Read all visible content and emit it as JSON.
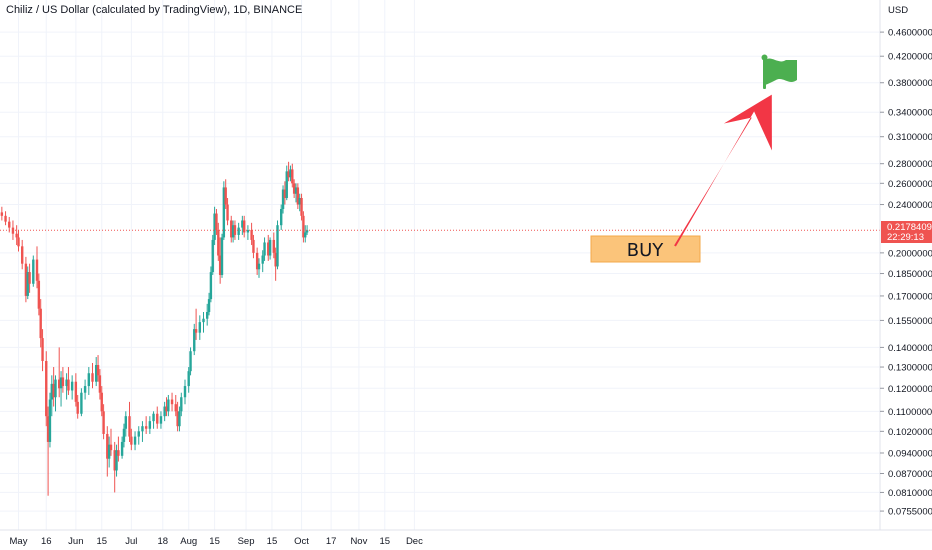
{
  "header": {
    "title": "Chiliz / US Dollar (calculated by TradingView), 1D, BINANCE"
  },
  "price_axis": {
    "currency": "USD",
    "labels": [
      "0.46000000",
      "0.42000000",
      "0.38000000",
      "0.34000000",
      "0.31000000",
      "0.28000000",
      "0.26000000",
      "0.24000000",
      "0.20000000",
      "0.18500000",
      "0.17000000",
      "0.15500000",
      "0.14000000",
      "0.13000000",
      "0.12000000",
      "0.11000000",
      "0.10200000",
      "0.09400000",
      "0.08700000",
      "0.08100000",
      "0.07550000"
    ],
    "current_price": "0.21784092",
    "countdown": "22:29:13"
  },
  "time_axis": {
    "labels": [
      "May",
      "16",
      "Jun",
      "15",
      "Jul",
      "18",
      "Aug",
      "15",
      "Sep",
      "15",
      "Oct",
      "17",
      "Nov",
      "15",
      "Dec"
    ]
  },
  "annotation": {
    "buy_label": "BUY"
  },
  "colors": {
    "up": "#26a69a",
    "down": "#ef5350",
    "buy_box": "#fbc47a",
    "arrow": "#f23645",
    "flag": "#4caf50",
    "grid": "#f0f3fa"
  },
  "chart_data": {
    "type": "candlestick",
    "title": "Chiliz / US Dollar (calculated by TradingView), 1D, BINANCE",
    "scale": "log",
    "ylim": [
      0.073,
      0.5
    ],
    "x_range": [
      "2021-04-21",
      "2021-12-25"
    ],
    "series": [
      {
        "values": [
          [
            "2021-04-22",
            0.233,
            0.238,
            0.226,
            0.23
          ],
          [
            "2021-04-24",
            0.23,
            0.234,
            0.222,
            0.225
          ],
          [
            "2021-04-26",
            0.225,
            0.229,
            0.216,
            0.22
          ],
          [
            "2021-04-28",
            0.22,
            0.226,
            0.21,
            0.215
          ],
          [
            "2021-04-30",
            0.215,
            0.222,
            0.206,
            0.212
          ],
          [
            "2021-05-01",
            0.212,
            0.218,
            0.201,
            0.205
          ],
          [
            "2021-05-03",
            0.205,
            0.21,
            0.188,
            0.192
          ],
          [
            "2021-05-05",
            0.192,
            0.197,
            0.166,
            0.17
          ],
          [
            "2021-05-06",
            0.17,
            0.19,
            0.168,
            0.186
          ],
          [
            "2021-05-07",
            0.186,
            0.192,
            0.172,
            0.178
          ],
          [
            "2021-05-09",
            0.178,
            0.198,
            0.176,
            0.195
          ],
          [
            "2021-05-11",
            0.195,
            0.205,
            0.175,
            0.18
          ],
          [
            "2021-05-12",
            0.18,
            0.185,
            0.158,
            0.162
          ],
          [
            "2021-05-13",
            0.162,
            0.168,
            0.14,
            0.145
          ],
          [
            "2021-05-14",
            0.145,
            0.15,
            0.128,
            0.133
          ],
          [
            "2021-05-16",
            0.133,
            0.138,
            0.104,
            0.108
          ],
          [
            "2021-05-17",
            0.108,
            0.112,
            0.08,
            0.098
          ],
          [
            "2021-05-18",
            0.098,
            0.118,
            0.096,
            0.115
          ],
          [
            "2021-05-19",
            0.115,
            0.126,
            0.108,
            0.122
          ],
          [
            "2021-05-20",
            0.122,
            0.13,
            0.112,
            0.116
          ],
          [
            "2021-05-21",
            0.116,
            0.126,
            0.11,
            0.124
          ],
          [
            "2021-05-23",
            0.124,
            0.14,
            0.116,
            0.12
          ],
          [
            "2021-05-24",
            0.12,
            0.128,
            0.112,
            0.125
          ],
          [
            "2021-05-25",
            0.125,
            0.13,
            0.118,
            0.121
          ],
          [
            "2021-05-27",
            0.121,
            0.127,
            0.115,
            0.124
          ],
          [
            "2021-05-28",
            0.124,
            0.13,
            0.117,
            0.119
          ],
          [
            "2021-05-30",
            0.119,
            0.126,
            0.115,
            0.123
          ],
          [
            "2021-06-01",
            0.123,
            0.127,
            0.112,
            0.114
          ],
          [
            "2021-06-02",
            0.114,
            0.117,
            0.107,
            0.109
          ],
          [
            "2021-06-04",
            0.109,
            0.12,
            0.108,
            0.118
          ],
          [
            "2021-06-06",
            0.118,
            0.124,
            0.115,
            0.121
          ],
          [
            "2021-06-08",
            0.121,
            0.13,
            0.117,
            0.127
          ],
          [
            "2021-06-10",
            0.127,
            0.132,
            0.12,
            0.123
          ],
          [
            "2021-06-12",
            0.123,
            0.135,
            0.121,
            0.131
          ],
          [
            "2021-06-13",
            0.131,
            0.136,
            0.123,
            0.126
          ],
          [
            "2021-06-14",
            0.126,
            0.129,
            0.115,
            0.118
          ],
          [
            "2021-06-15",
            0.118,
            0.121,
            0.108,
            0.11
          ],
          [
            "2021-06-16",
            0.11,
            0.113,
            0.099,
            0.101
          ],
          [
            "2021-06-18",
            0.101,
            0.104,
            0.086,
            0.092
          ],
          [
            "2021-06-19",
            0.092,
            0.1,
            0.089,
            0.097
          ],
          [
            "2021-06-20",
            0.097,
            0.103,
            0.093,
            0.095
          ],
          [
            "2021-06-22",
            0.095,
            0.098,
            0.081,
            0.088
          ],
          [
            "2021-06-23",
            0.088,
            0.097,
            0.086,
            0.095
          ],
          [
            "2021-06-24",
            0.095,
            0.1,
            0.091,
            0.093
          ],
          [
            "2021-06-26",
            0.093,
            0.1,
            0.092,
            0.098
          ],
          [
            "2021-06-27",
            0.098,
            0.105,
            0.096,
            0.103
          ],
          [
            "2021-06-28",
            0.103,
            0.11,
            0.1,
            0.108
          ],
          [
            "2021-06-30",
            0.108,
            0.114,
            0.098,
            0.1
          ],
          [
            "2021-07-01",
            0.1,
            0.103,
            0.095,
            0.097
          ],
          [
            "2021-07-03",
            0.097,
            0.102,
            0.095,
            0.1
          ],
          [
            "2021-07-05",
            0.1,
            0.104,
            0.097,
            0.102
          ],
          [
            "2021-07-07",
            0.102,
            0.106,
            0.098,
            0.104
          ],
          [
            "2021-07-09",
            0.104,
            0.108,
            0.101,
            0.103
          ],
          [
            "2021-07-11",
            0.103,
            0.108,
            0.101,
            0.106
          ],
          [
            "2021-07-13",
            0.106,
            0.11,
            0.103,
            0.109
          ],
          [
            "2021-07-15",
            0.109,
            0.112,
            0.103,
            0.105
          ],
          [
            "2021-07-17",
            0.105,
            0.11,
            0.103,
            0.108
          ],
          [
            "2021-07-19",
            0.108,
            0.114,
            0.106,
            0.112
          ],
          [
            "2021-07-20",
            0.112,
            0.116,
            0.108,
            0.11
          ],
          [
            "2021-07-21",
            0.11,
            0.117,
            0.108,
            0.115
          ],
          [
            "2021-07-23",
            0.115,
            0.118,
            0.11,
            0.113
          ],
          [
            "2021-07-25",
            0.113,
            0.117,
            0.108,
            0.11
          ],
          [
            "2021-07-26",
            0.11,
            0.114,
            0.102,
            0.104
          ],
          [
            "2021-07-27",
            0.104,
            0.112,
            0.102,
            0.11
          ],
          [
            "2021-07-28",
            0.11,
            0.118,
            0.108,
            0.116
          ],
          [
            "2021-07-30",
            0.116,
            0.124,
            0.113,
            0.121
          ],
          [
            "2021-08-01",
            0.121,
            0.13,
            0.118,
            0.128
          ],
          [
            "2021-08-02",
            0.128,
            0.14,
            0.126,
            0.138
          ],
          [
            "2021-08-04",
            0.138,
            0.153,
            0.136,
            0.15
          ],
          [
            "2021-08-05",
            0.15,
            0.162,
            0.144,
            0.148
          ],
          [
            "2021-08-07",
            0.148,
            0.158,
            0.144,
            0.154
          ],
          [
            "2021-08-09",
            0.154,
            0.16,
            0.148,
            0.156
          ],
          [
            "2021-08-11",
            0.156,
            0.165,
            0.152,
            0.16
          ],
          [
            "2021-08-12",
            0.16,
            0.172,
            0.158,
            0.168
          ],
          [
            "2021-08-13",
            0.168,
            0.19,
            0.166,
            0.186
          ],
          [
            "2021-08-14",
            0.186,
            0.214,
            0.184,
            0.21
          ],
          [
            "2021-08-15",
            0.21,
            0.238,
            0.206,
            0.232
          ],
          [
            "2021-08-16",
            0.232,
            0.236,
            0.214,
            0.218
          ],
          [
            "2021-08-17",
            0.218,
            0.224,
            0.194,
            0.198
          ],
          [
            "2021-08-18",
            0.198,
            0.212,
            0.178,
            0.184
          ],
          [
            "2021-08-19",
            0.184,
            0.215,
            0.182,
            0.212
          ],
          [
            "2021-08-20",
            0.212,
            0.262,
            0.21,
            0.256
          ],
          [
            "2021-08-21",
            0.256,
            0.264,
            0.236,
            0.24
          ],
          [
            "2021-08-22",
            0.24,
            0.246,
            0.222,
            0.226
          ],
          [
            "2021-08-24",
            0.226,
            0.23,
            0.208,
            0.212
          ],
          [
            "2021-08-25",
            0.212,
            0.226,
            0.208,
            0.222
          ],
          [
            "2021-08-26",
            0.222,
            0.226,
            0.21,
            0.214
          ],
          [
            "2021-08-28",
            0.214,
            0.224,
            0.21,
            0.22
          ],
          [
            "2021-08-30",
            0.22,
            0.23,
            0.214,
            0.226
          ],
          [
            "2021-08-31",
            0.226,
            0.23,
            0.212,
            0.216
          ],
          [
            "2021-09-02",
            0.216,
            0.222,
            0.21,
            0.218
          ],
          [
            "2021-09-04",
            0.218,
            0.224,
            0.206,
            0.21
          ],
          [
            "2021-09-05",
            0.21,
            0.214,
            0.196,
            0.2
          ],
          [
            "2021-09-07",
            0.2,
            0.204,
            0.184,
            0.188
          ],
          [
            "2021-09-08",
            0.188,
            0.196,
            0.182,
            0.192
          ],
          [
            "2021-09-10",
            0.192,
            0.202,
            0.186,
            0.198
          ],
          [
            "2021-09-11",
            0.198,
            0.212,
            0.194,
            0.208
          ],
          [
            "2021-09-13",
            0.208,
            0.214,
            0.194,
            0.198
          ],
          [
            "2021-09-14",
            0.198,
            0.212,
            0.195,
            0.21
          ],
          [
            "2021-09-16",
            0.21,
            0.216,
            0.196,
            0.2
          ],
          [
            "2021-09-17",
            0.2,
            0.204,
            0.18,
            0.19
          ],
          [
            "2021-09-18",
            0.19,
            0.226,
            0.188,
            0.222
          ],
          [
            "2021-09-20",
            0.222,
            0.24,
            0.218,
            0.236
          ],
          [
            "2021-09-21",
            0.236,
            0.258,
            0.232,
            0.254
          ],
          [
            "2021-09-22",
            0.254,
            0.262,
            0.24,
            0.246
          ],
          [
            "2021-09-23",
            0.246,
            0.278,
            0.244,
            0.272
          ],
          [
            "2021-09-24",
            0.272,
            0.282,
            0.262,
            0.266
          ],
          [
            "2021-09-25",
            0.266,
            0.278,
            0.262,
            0.274
          ],
          [
            "2021-09-26",
            0.274,
            0.28,
            0.256,
            0.26
          ],
          [
            "2021-09-27",
            0.26,
            0.264,
            0.246,
            0.25
          ],
          [
            "2021-09-28",
            0.25,
            0.26,
            0.242,
            0.256
          ],
          [
            "2021-09-29",
            0.256,
            0.26,
            0.236,
            0.24
          ],
          [
            "2021-09-30",
            0.24,
            0.25,
            0.234,
            0.246
          ],
          [
            "2021-10-01",
            0.246,
            0.25,
            0.226,
            0.23
          ],
          [
            "2021-10-02",
            0.23,
            0.234,
            0.208,
            0.212
          ],
          [
            "2021-10-03",
            0.212,
            0.222,
            0.208,
            0.216
          ],
          [
            "2021-10-04",
            0.216,
            0.222,
            0.214,
            0.21784092
          ]
        ]
      }
    ],
    "annotations": [
      "BUY"
    ]
  }
}
